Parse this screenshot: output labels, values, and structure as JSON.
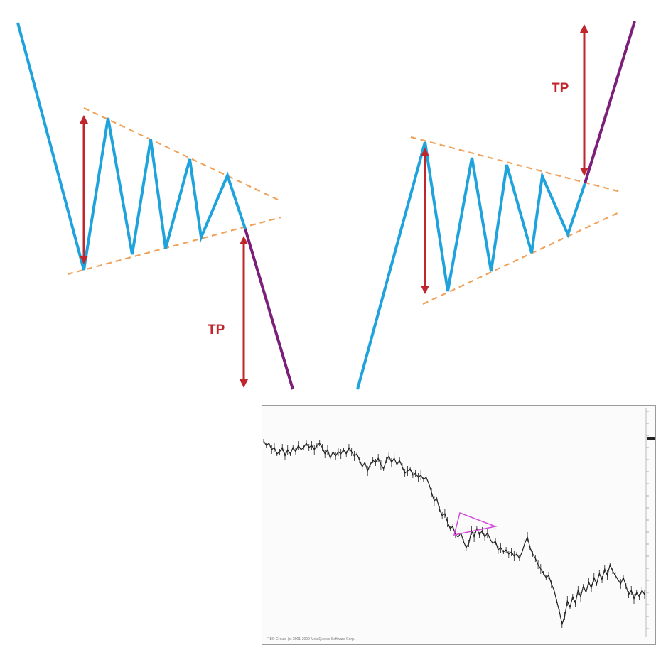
{
  "diagram": {
    "left_pattern": {
      "target_label": "TP"
    },
    "right_pattern": {
      "target_label": "TP"
    }
  },
  "colors": {
    "price_line": "#1fa3dc",
    "breakout_line": "#7b1f7a",
    "trendline": "#f0a25a",
    "arrow": "#c0272d",
    "triangle_marker": "#d24bd8",
    "price_series": "#222222"
  },
  "price_chart": {
    "footer": "FIBO Group, (c) 2001-2009 MetaQuotes Software Corp."
  },
  "chart_data": {
    "type": "line",
    "series": [
      {
        "values": [
          0.1,
          0.12,
          0.11,
          0.14,
          0.13,
          0.16,
          0.15,
          0.13,
          0.17,
          0.14,
          0.16,
          0.13,
          0.15,
          0.12,
          0.14,
          0.13,
          0.11,
          0.13,
          0.12,
          0.14,
          0.12,
          0.11,
          0.13,
          0.16,
          0.14,
          0.18,
          0.15,
          0.17,
          0.15,
          0.16,
          0.14,
          0.16,
          0.13,
          0.15,
          0.17,
          0.16,
          0.19,
          0.22,
          0.2,
          0.24,
          0.21,
          0.19,
          0.2,
          0.18,
          0.21,
          0.23,
          0.19,
          0.17,
          0.2,
          0.18,
          0.21,
          0.19,
          0.22,
          0.25,
          0.24,
          0.23,
          0.26,
          0.25,
          0.27,
          0.26,
          0.28,
          0.27,
          0.3,
          0.34,
          0.38,
          0.37,
          0.42,
          0.45,
          0.44,
          0.48,
          0.51,
          0.5,
          0.54,
          0.55,
          0.53,
          0.57,
          0.6,
          0.58,
          0.52,
          0.55,
          0.51,
          0.54,
          0.52,
          0.55,
          0.53,
          0.56,
          0.58,
          0.57,
          0.61,
          0.6,
          0.62,
          0.61,
          0.63,
          0.62,
          0.64,
          0.63,
          0.65,
          0.62,
          0.58,
          0.55,
          0.6,
          0.63,
          0.65,
          0.68,
          0.7,
          0.72,
          0.74,
          0.73,
          0.77,
          0.8,
          0.85,
          0.9,
          0.96,
          0.92,
          0.85,
          0.88,
          0.83,
          0.86,
          0.8,
          0.83,
          0.78,
          0.81,
          0.76,
          0.79,
          0.74,
          0.77,
          0.72,
          0.75,
          0.7,
          0.73,
          0.68,
          0.71,
          0.73,
          0.75,
          0.77,
          0.74,
          0.78,
          0.82,
          0.8,
          0.84,
          0.81,
          0.83,
          0.8,
          0.82
        ]
      }
    ]
  }
}
